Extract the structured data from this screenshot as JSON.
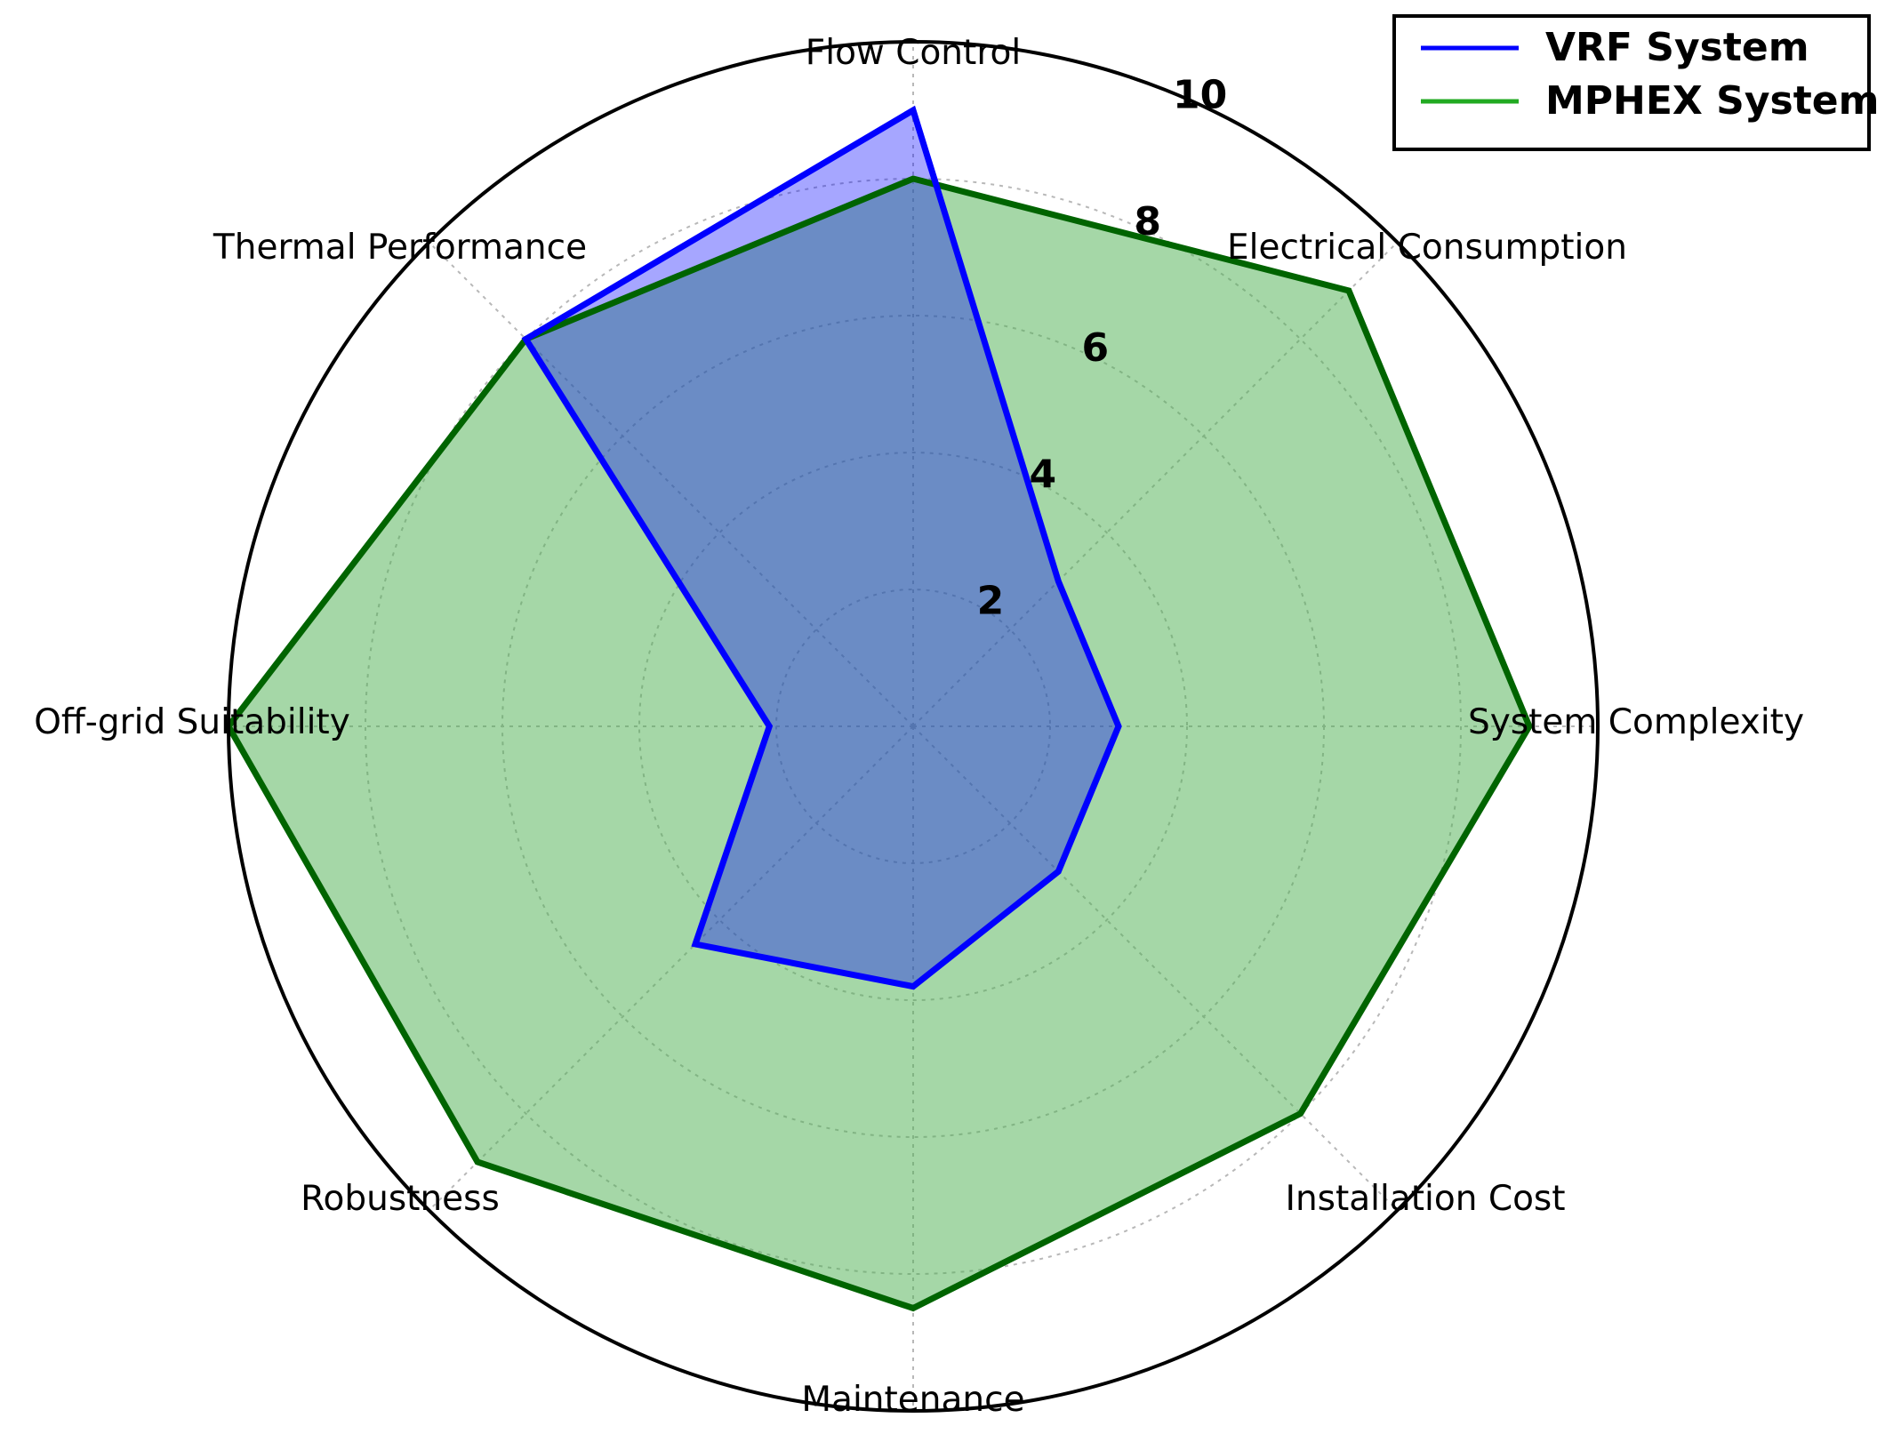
{
  "chart_data": {
    "type": "radar",
    "categories": [
      "Flow Control",
      "Electrical Consumption",
      "System Complexity",
      "Installation Cost",
      "Maintenance",
      "Robustness",
      "Off-grid Suitability",
      "Thermal Performance"
    ],
    "r_ticks": [
      "2",
      "4",
      "6",
      "8",
      "10"
    ],
    "r_tick_values": [
      2,
      4,
      6,
      8,
      10
    ],
    "rlim": [
      0,
      10
    ],
    "grid": true,
    "legend_position": "top-right",
    "series": [
      {
        "name": "VRF System",
        "values": [
          9.0,
          3.0,
          3.0,
          3.0,
          3.8,
          4.5,
          2.1,
          8.0
        ],
        "line_color": "#0000ff",
        "fill_color": "#0000ff"
      },
      {
        "name": "MPHEX System",
        "values": [
          8.0,
          9.0,
          9.0,
          8.0,
          8.5,
          9.0,
          10.0,
          8.0
        ],
        "line_color": "#006400",
        "fill_color": "#4caf50"
      }
    ]
  }
}
